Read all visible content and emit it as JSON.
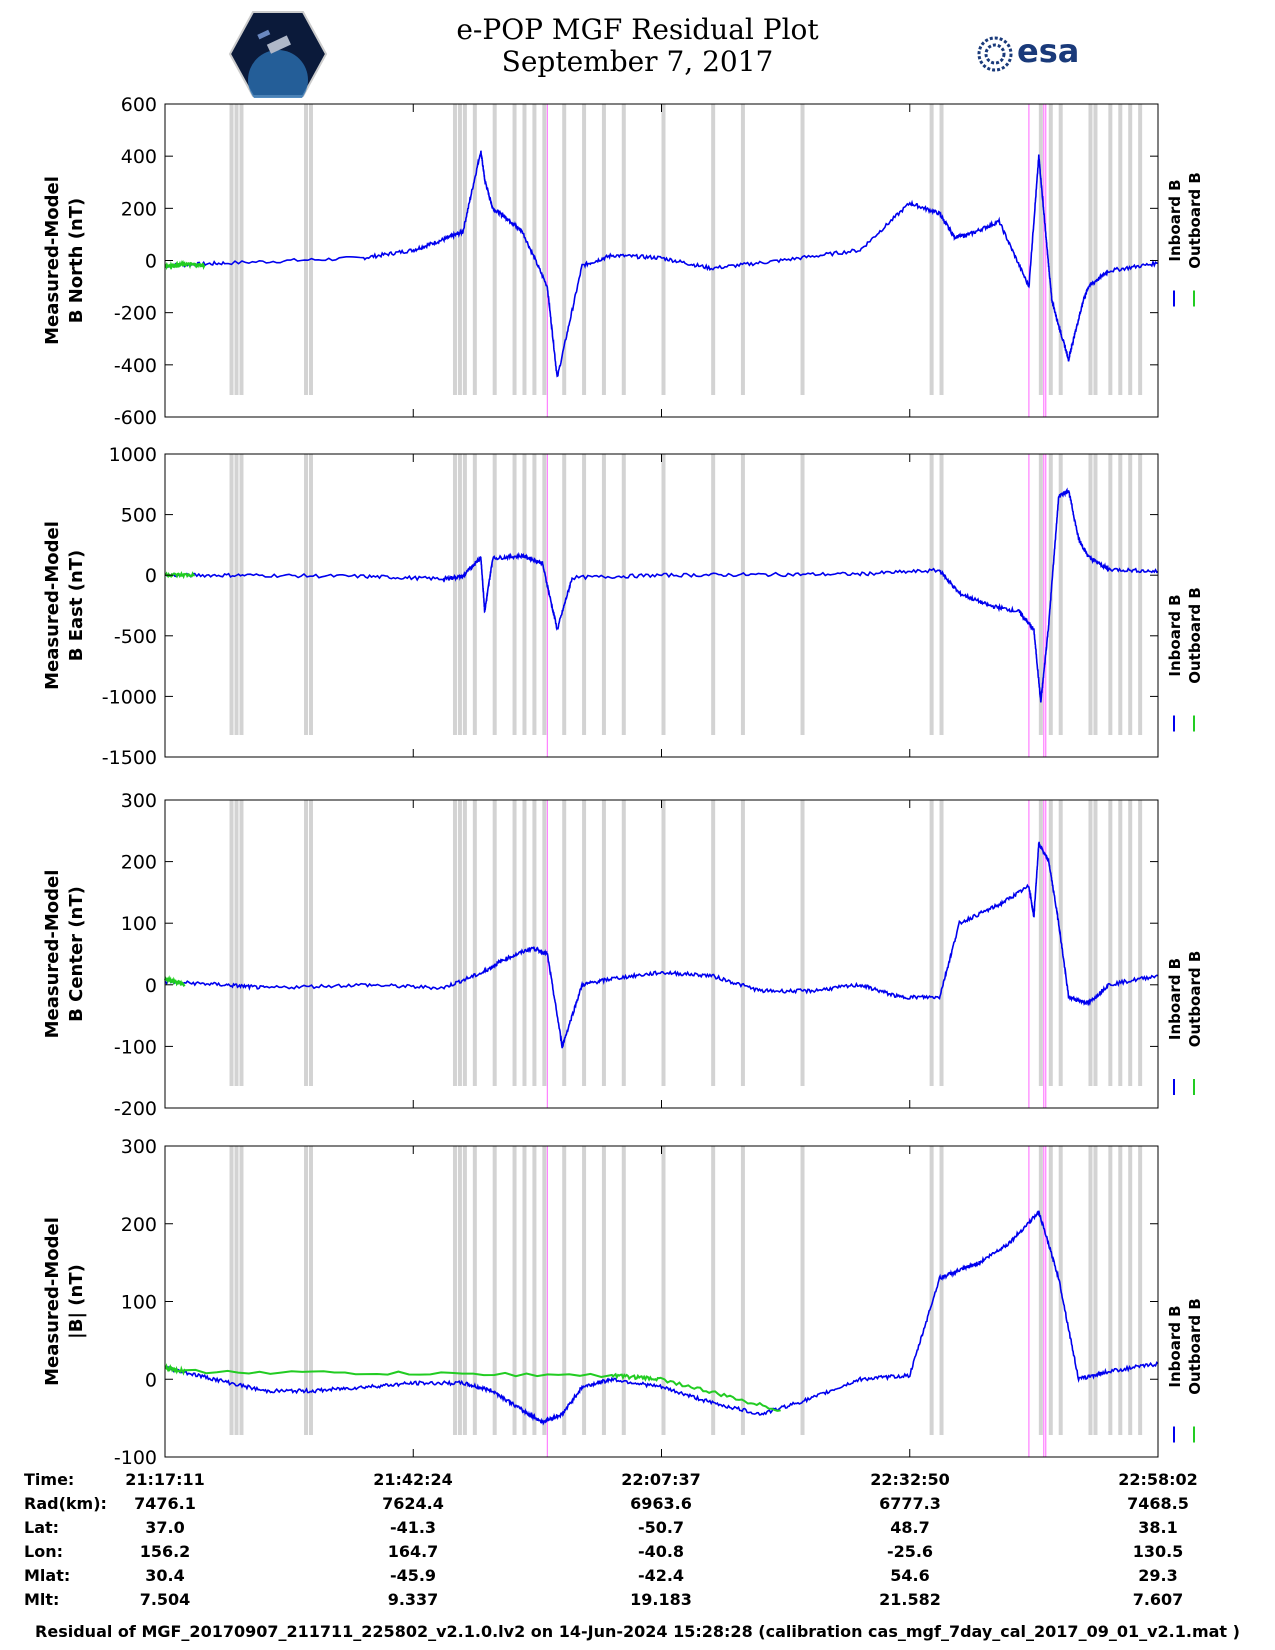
{
  "title": {
    "line1": "e-POP MGF Residual Plot",
    "line2": "September 7, 2017"
  },
  "logos": {
    "left": "cassiope-mission-logo",
    "right_text": "esa",
    "accent": "#1a3a7a"
  },
  "colors": {
    "inboard": "#0000ee",
    "outboard": "#22cc22",
    "gray_band": "#d3d3d3",
    "magenta_line": "#ff66ff"
  },
  "chart_data": [
    {
      "type": "line",
      "ylabel_line1": "Measured-Model",
      "ylabel_line2": "B North (nT)",
      "ylim": [
        -600,
        600
      ],
      "yticks": [
        -600,
        -400,
        -200,
        0,
        200,
        400,
        600
      ],
      "legend": [
        "Inboard B",
        "Outboard B"
      ],
      "series": [
        {
          "name": "Inboard B",
          "x": [
            0,
            0.06,
            0.2,
            0.25,
            0.28,
            0.3,
            0.318,
            0.322,
            0.33,
            0.345,
            0.36,
            0.385,
            0.395,
            0.42,
            0.45,
            0.5,
            0.55,
            0.62,
            0.7,
            0.75,
            0.78,
            0.795,
            0.81,
            0.84,
            0.87,
            0.88,
            0.887,
            0.893,
            0.9,
            0.91,
            0.915,
            0.925,
            0.93,
            0.95,
            1.0
          ],
          "y": [
            -20,
            -10,
            10,
            40,
            80,
            110,
            420,
            310,
            200,
            160,
            110,
            -100,
            -450,
            -20,
            20,
            10,
            -30,
            0,
            40,
            220,
            180,
            90,
            100,
            150,
            -100,
            400,
            100,
            -150,
            -250,
            -380,
            -300,
            -150,
            -100,
            -40,
            -10
          ]
        },
        {
          "name": "Outboard B",
          "x": [
            0,
            0.02,
            0.04
          ],
          "y": [
            -20,
            -15,
            -18
          ]
        }
      ],
      "gray_bands": [
        0.065,
        0.07,
        0.075,
        0.14,
        0.145,
        0.29,
        0.295,
        0.3,
        0.31,
        0.33,
        0.35,
        0.36,
        0.37,
        0.38,
        0.4,
        0.42,
        0.44,
        0.46,
        0.5,
        0.55,
        0.58,
        0.64,
        0.77,
        0.78,
        0.88,
        0.89,
        0.9,
        0.93,
        0.935,
        0.95,
        0.96,
        0.97,
        0.98
      ],
      "magenta_lines": [
        0.385,
        0.87,
        0.885,
        0.887
      ]
    },
    {
      "type": "line",
      "ylabel_line1": "Measured-Model",
      "ylabel_line2": "B East (nT)",
      "ylim": [
        -1500,
        1000
      ],
      "yticks": [
        -1500,
        -1000,
        -500,
        0,
        500,
        1000
      ],
      "legend": [
        "Inboard B",
        "Outboard B"
      ],
      "series": [
        {
          "name": "Inboard B",
          "x": [
            0,
            0.08,
            0.2,
            0.28,
            0.3,
            0.318,
            0.322,
            0.33,
            0.36,
            0.38,
            0.395,
            0.41,
            0.5,
            0.6,
            0.7,
            0.78,
            0.8,
            0.83,
            0.86,
            0.875,
            0.882,
            0.89,
            0.9,
            0.91,
            0.92,
            0.93,
            0.95,
            1.0
          ],
          "y": [
            0,
            0,
            -10,
            -30,
            -10,
            150,
            -300,
            140,
            160,
            100,
            -450,
            -20,
            0,
            5,
            10,
            40,
            -150,
            -250,
            -300,
            -450,
            -1050,
            -400,
            650,
            700,
            300,
            150,
            50,
            30
          ]
        },
        {
          "name": "Outboard B",
          "x": [
            0,
            0.03
          ],
          "y": [
            5,
            0
          ]
        }
      ],
      "gray_bands": [
        0.065,
        0.07,
        0.075,
        0.14,
        0.145,
        0.29,
        0.295,
        0.3,
        0.31,
        0.33,
        0.35,
        0.36,
        0.37,
        0.38,
        0.4,
        0.42,
        0.44,
        0.46,
        0.5,
        0.55,
        0.58,
        0.64,
        0.77,
        0.78,
        0.88,
        0.89,
        0.9,
        0.93,
        0.935,
        0.95,
        0.96,
        0.97,
        0.98
      ],
      "magenta_lines": [
        0.385,
        0.87,
        0.885,
        0.887
      ]
    },
    {
      "type": "line",
      "ylabel_line1": "Measured-Model",
      "ylabel_line2": "B Center (nT)",
      "ylim": [
        -200,
        300
      ],
      "yticks": [
        -200,
        -100,
        0,
        100,
        200,
        300
      ],
      "legend": [
        "Inboard B",
        "Outboard B"
      ],
      "series": [
        {
          "name": "Inboard B",
          "x": [
            0,
            0.06,
            0.1,
            0.2,
            0.28,
            0.32,
            0.34,
            0.37,
            0.385,
            0.4,
            0.42,
            0.45,
            0.5,
            0.55,
            0.6,
            0.65,
            0.7,
            0.74,
            0.78,
            0.8,
            0.84,
            0.87,
            0.875,
            0.88,
            0.89,
            0.9,
            0.91,
            0.93,
            0.95,
            1.0
          ],
          "y": [
            5,
            0,
            -5,
            0,
            -5,
            20,
            40,
            60,
            50,
            -100,
            0,
            10,
            20,
            15,
            -10,
            -10,
            0,
            -20,
            -20,
            100,
            130,
            160,
            110,
            230,
            200,
            100,
            -20,
            -30,
            0,
            15
          ]
        },
        {
          "name": "Outboard B",
          "x": [
            0,
            0.02
          ],
          "y": [
            10,
            0
          ]
        }
      ],
      "gray_bands": [
        0.065,
        0.07,
        0.075,
        0.14,
        0.145,
        0.29,
        0.295,
        0.3,
        0.31,
        0.33,
        0.35,
        0.36,
        0.37,
        0.38,
        0.4,
        0.42,
        0.44,
        0.46,
        0.5,
        0.55,
        0.58,
        0.64,
        0.77,
        0.78,
        0.88,
        0.89,
        0.9,
        0.93,
        0.935,
        0.95,
        0.96,
        0.97,
        0.98
      ],
      "magenta_lines": [
        0.385,
        0.87,
        0.885,
        0.887
      ]
    },
    {
      "type": "line",
      "ylabel_line1": "Measured-Model",
      "ylabel_line2": "|B| (nT)",
      "ylim": [
        -100,
        300
      ],
      "yticks": [
        -100,
        0,
        100,
        200,
        300
      ],
      "legend": [
        "Inboard B",
        "Outboard B"
      ],
      "series": [
        {
          "name": "Inboard B",
          "x": [
            0,
            0.05,
            0.1,
            0.15,
            0.2,
            0.25,
            0.3,
            0.33,
            0.36,
            0.38,
            0.4,
            0.42,
            0.45,
            0.5,
            0.55,
            0.6,
            0.65,
            0.7,
            0.75,
            0.78,
            0.8,
            0.82,
            0.85,
            0.88,
            0.9,
            0.92,
            0.95,
            1.0
          ],
          "y": [
            15,
            0,
            -15,
            -15,
            -10,
            -5,
            -5,
            -15,
            -40,
            -55,
            -45,
            -10,
            0,
            -10,
            -30,
            -45,
            -25,
            0,
            5,
            130,
            140,
            150,
            175,
            215,
            130,
            0,
            10,
            20
          ]
        },
        {
          "name": "Outboard B",
          "x": [
            0,
            0.02,
            0.45,
            0.5,
            0.62
          ],
          "y": [
            15,
            10,
            5,
            0,
            -40
          ]
        }
      ],
      "gray_bands": [
        0.065,
        0.07,
        0.075,
        0.14,
        0.145,
        0.29,
        0.295,
        0.3,
        0.31,
        0.33,
        0.35,
        0.36,
        0.37,
        0.38,
        0.4,
        0.42,
        0.44,
        0.46,
        0.5,
        0.55,
        0.58,
        0.64,
        0.77,
        0.78,
        0.88,
        0.89,
        0.9,
        0.93,
        0.935,
        0.95,
        0.96,
        0.97,
        0.98
      ],
      "magenta_lines": [
        0.385,
        0.87,
        0.885,
        0.887
      ]
    }
  ],
  "ephemeris": {
    "labels": [
      "Time:",
      "Rad(km):",
      "Lat:",
      "Lon:",
      "Mlat:",
      "Mlt:"
    ],
    "columns": [
      [
        "21:17:11",
        "7476.1",
        "37.0",
        "156.2",
        "30.4",
        "7.504"
      ],
      [
        "21:42:24",
        "7624.4",
        "-41.3",
        "164.7",
        "-45.9",
        "9.337"
      ],
      [
        "22:07:37",
        "6963.6",
        "-50.7",
        "-40.8",
        "-42.4",
        "19.183"
      ],
      [
        "22:32:50",
        "6777.3",
        "48.7",
        "-25.6",
        "54.6",
        "21.582"
      ],
      [
        "22:58:02",
        "7468.5",
        "38.1",
        "130.5",
        "29.3",
        "7.607"
      ]
    ]
  },
  "footer": "Residual of MGF_20170907_211711_225802_v2.1.0.lv2 on 14-Jun-2024 15:28:28 (calibration cas_mgf_7day_cal_2017_09_01_v2.1.mat )"
}
